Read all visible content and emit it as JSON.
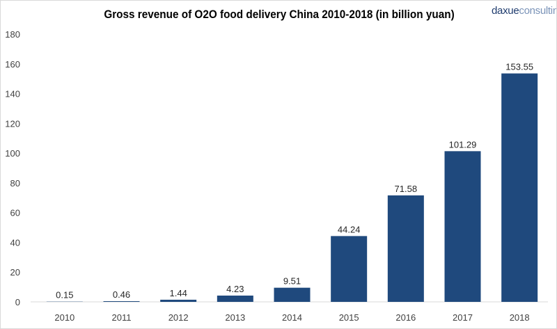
{
  "chart_data": {
    "type": "bar",
    "title": "Gross revenue of O2O food delivery China 2010-2018 (in billion yuan)",
    "categories": [
      "2010",
      "2011",
      "2012",
      "2013",
      "2014",
      "2015",
      "2016",
      "2017",
      "2018"
    ],
    "values": [
      0.15,
      0.46,
      1.44,
      4.23,
      9.51,
      44.24,
      71.58,
      101.29,
      153.55
    ],
    "data_labels": [
      "0.15",
      "0.46",
      "1.44",
      "4.23",
      "9.51",
      "44.24",
      "71.58",
      "101.29",
      "153.55"
    ],
    "xlabel": "",
    "ylabel": "",
    "ylim": [
      0,
      180
    ],
    "yticks": [
      0,
      20,
      40,
      60,
      80,
      100,
      120,
      140,
      160,
      180
    ],
    "grid": false,
    "bar_color": "#1f497d"
  },
  "logo": {
    "bold": "daxue",
    "light": "consulting"
  }
}
